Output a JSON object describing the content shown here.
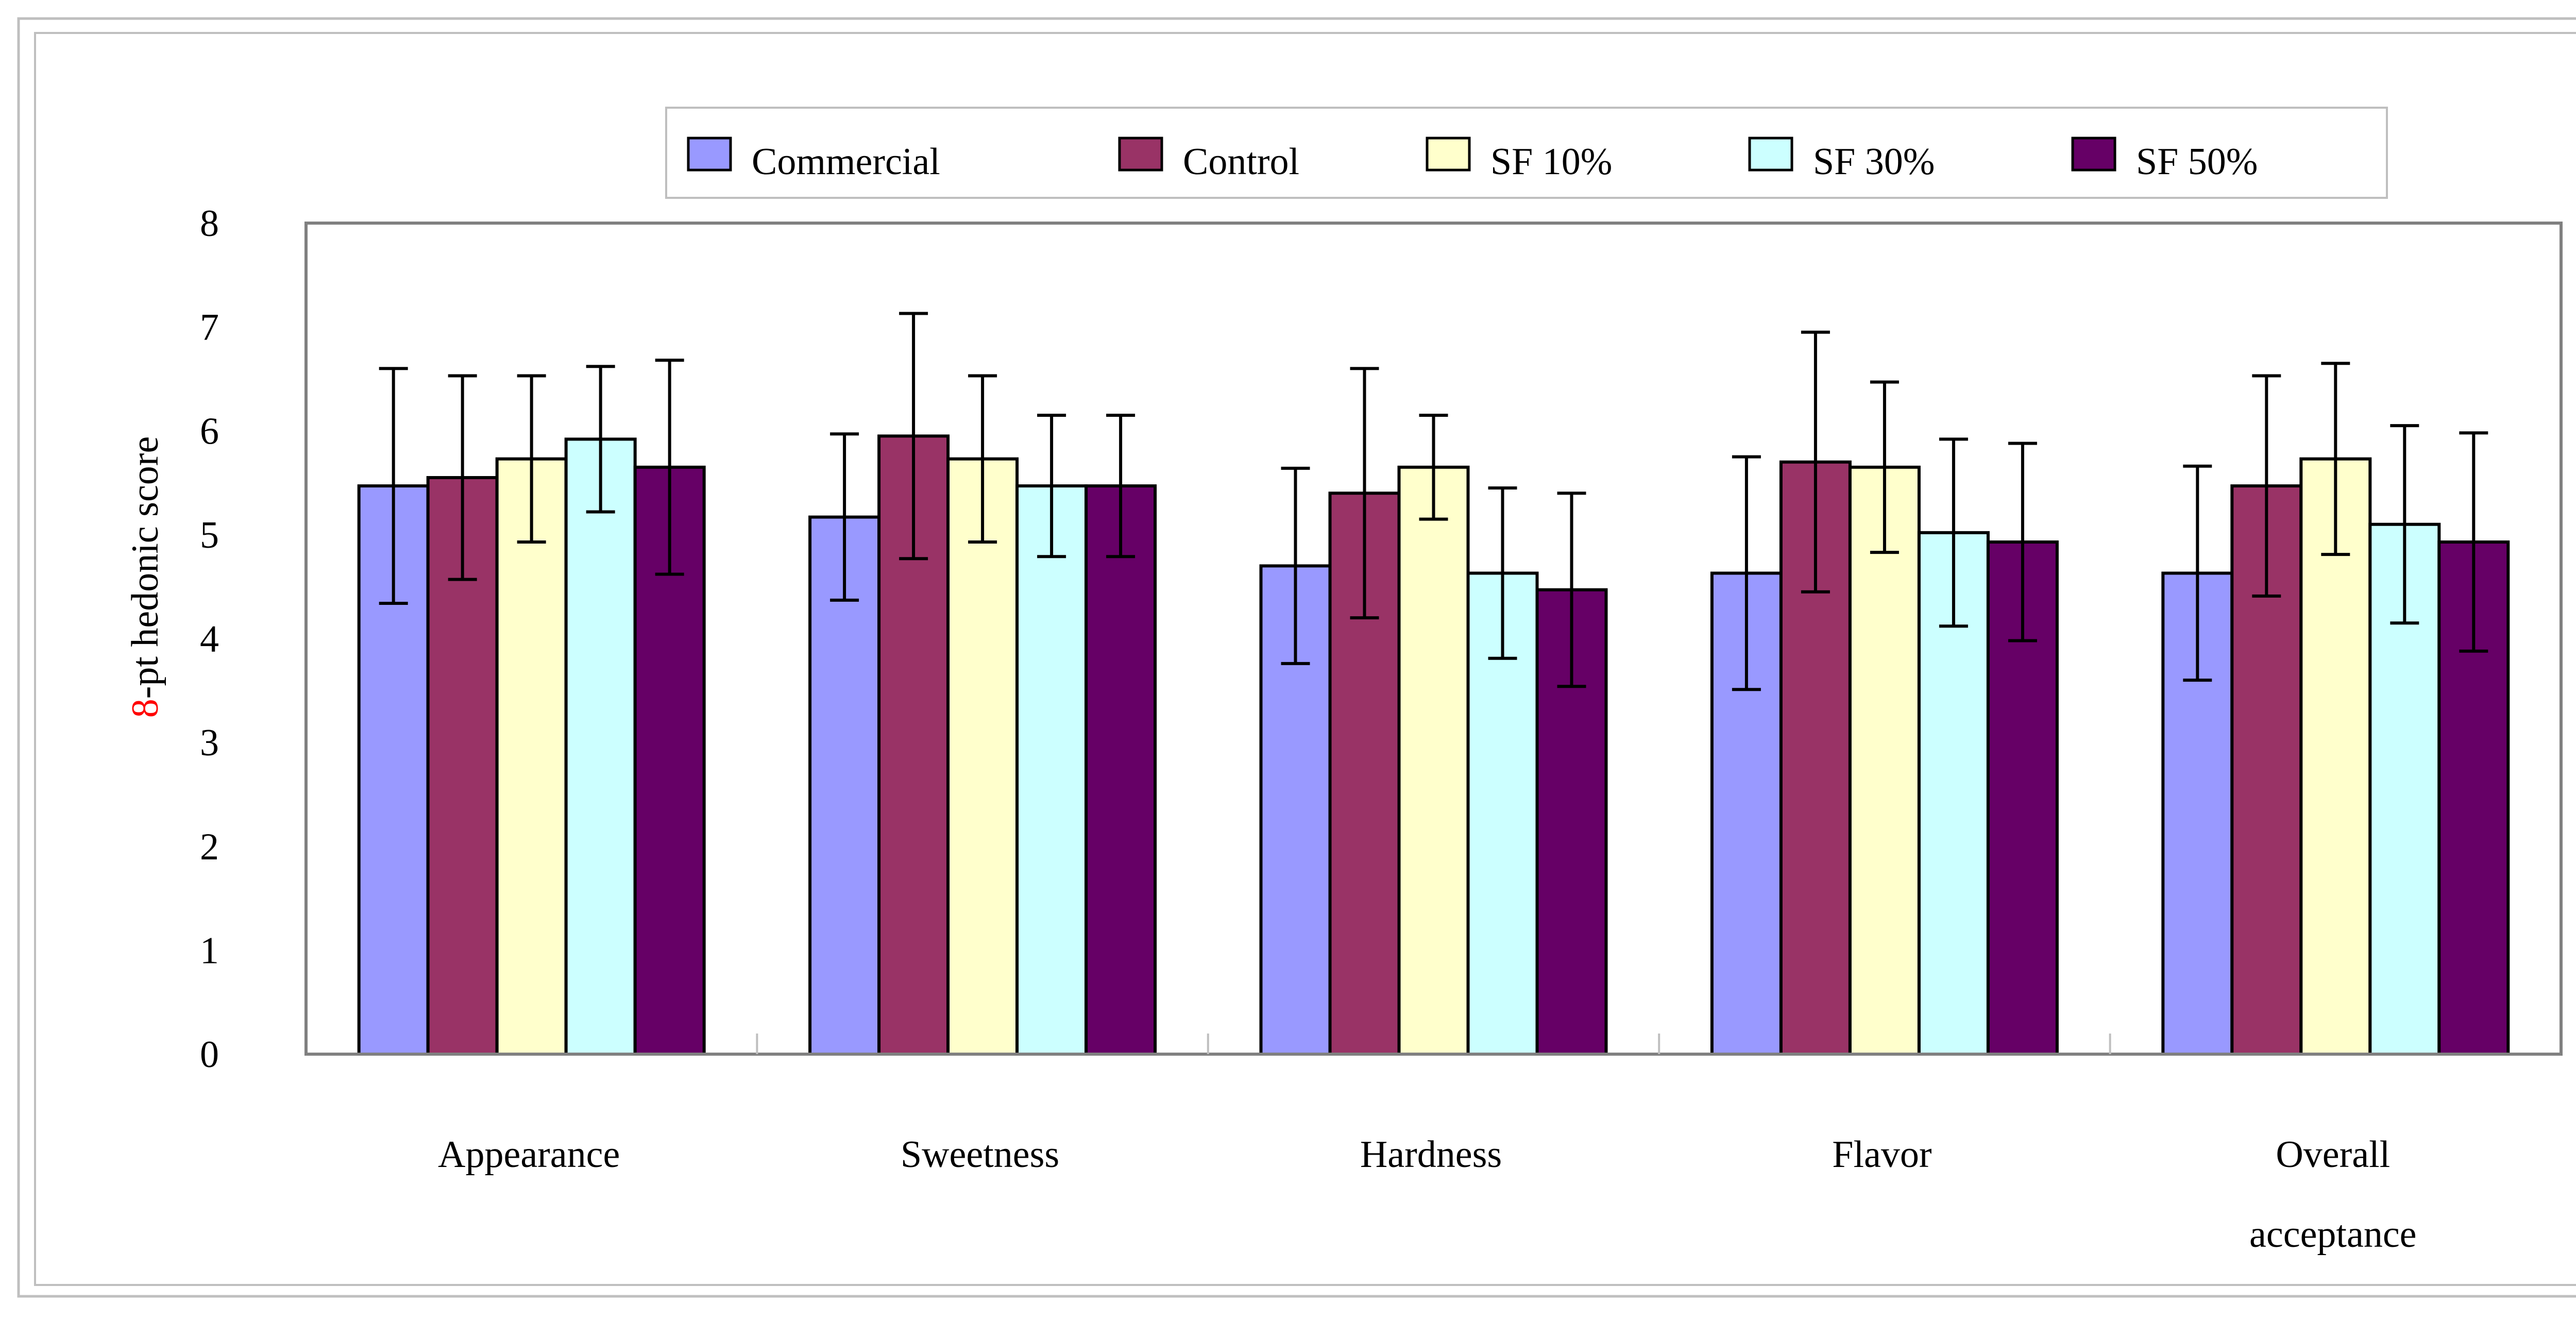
{
  "chart_data": {
    "type": "bar",
    "title": "",
    "xlabel": "",
    "ylabel": "8-pt hedonic score",
    "ylabel_highlight": "8",
    "ylabel_rest": "-pt hedonic score",
    "ylim": [
      0,
      8
    ],
    "yticks": [
      "0",
      "1",
      "2",
      "3",
      "4",
      "5",
      "6",
      "7",
      "8"
    ],
    "categories": [
      "Appearance",
      "Sweetness",
      "Hardness",
      "Flavor",
      "Overall acceptance"
    ],
    "category_lines": [
      [
        "Appearance"
      ],
      [
        "Sweetness"
      ],
      [
        "Hardness"
      ],
      [
        "Flavor"
      ],
      [
        "Overall",
        "acceptance"
      ]
    ],
    "legend_position": "top",
    "series": [
      {
        "name": "Commercial",
        "color": "#9999FF",
        "values": [
          5.47,
          5.17,
          4.7,
          4.63,
          4.63
        ],
        "errors": [
          1.13,
          0.8,
          0.94,
          1.12,
          1.03
        ]
      },
      {
        "name": "Control",
        "color": "#993366",
        "values": [
          5.55,
          5.95,
          5.4,
          5.7,
          5.47
        ],
        "errors": [
          0.98,
          1.18,
          1.2,
          1.25,
          1.06
        ]
      },
      {
        "name": "SF 10%",
        "color": "#FFFFCC",
        "values": [
          5.73,
          5.73,
          5.65,
          5.65,
          5.73
        ],
        "errors": [
          0.8,
          0.8,
          0.5,
          0.82,
          0.92
        ]
      },
      {
        "name": "SF 30%",
        "color": "#CCFFFF",
        "values": [
          5.92,
          5.47,
          4.63,
          5.02,
          5.1
        ],
        "errors": [
          0.7,
          0.68,
          0.82,
          0.9,
          0.95
        ]
      },
      {
        "name": "SF 50%",
        "color": "#660066",
        "values": [
          5.65,
          5.47,
          4.47,
          4.93,
          4.93
        ],
        "errors": [
          1.03,
          0.68,
          0.93,
          0.95,
          1.05
        ]
      }
    ],
    "colors": {
      "plot_border": "#808080",
      "frame_border": "#BFBFBF",
      "bar_border": "#000000",
      "ylabel_accent": "#FF0000"
    }
  }
}
